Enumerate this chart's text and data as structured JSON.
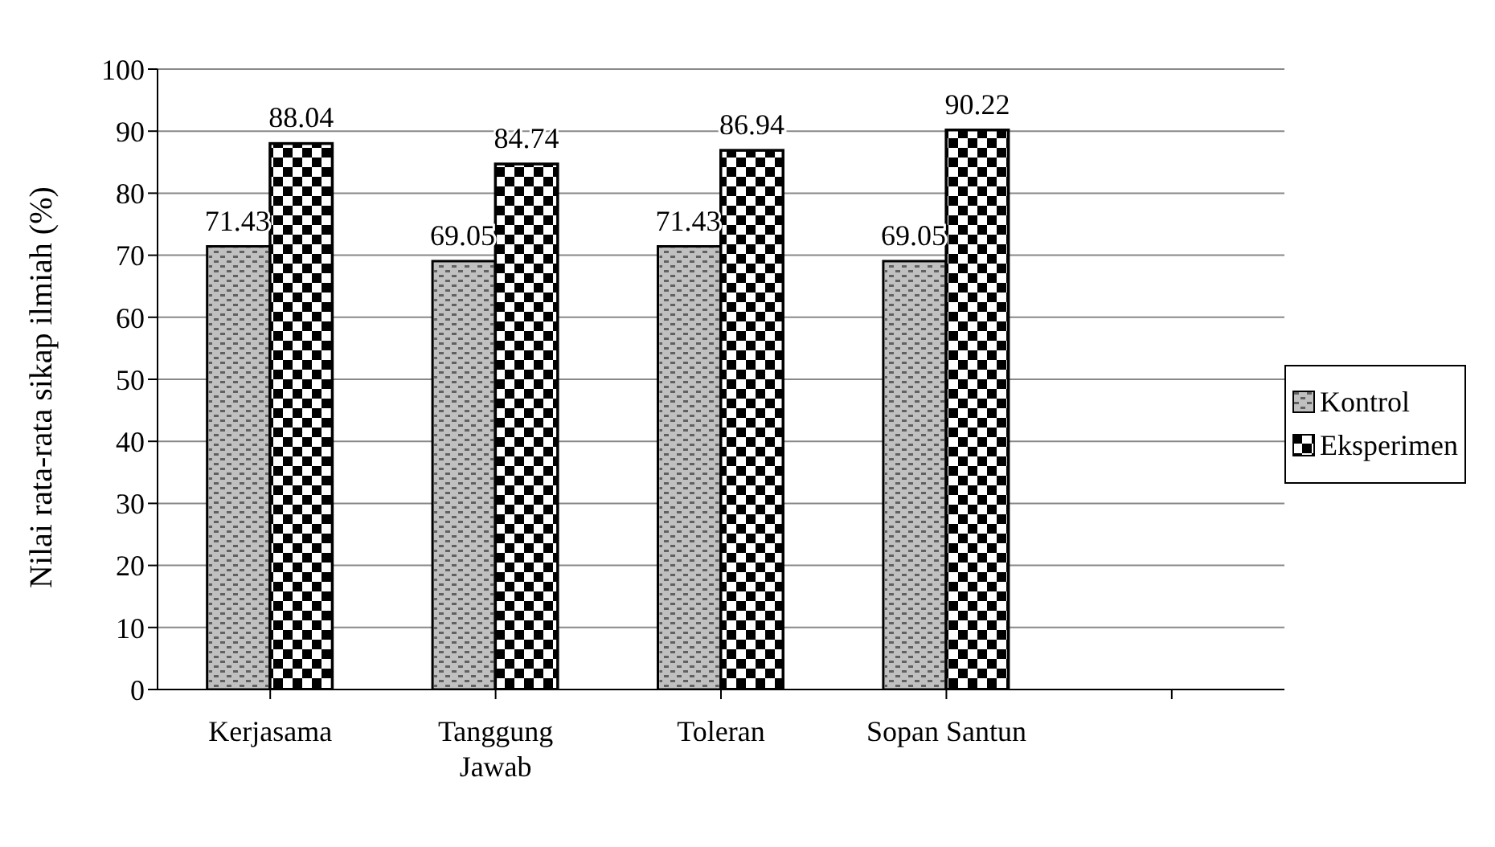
{
  "chart_data": {
    "type": "bar",
    "ylabel": "Nilai rata-rata sikap ilmiah (%)",
    "categories": [
      "Kerjasama",
      "Tanggung Jawab",
      "Toleran",
      "Sopan Santun",
      null
    ],
    "series": [
      {
        "name": "Kontrol",
        "color": "#c0c0c0",
        "values": [
          71.43,
          69.05,
          71.43,
          69.05,
          null
        ]
      },
      {
        "name": "Eksperimen",
        "color": "#000000",
        "values": [
          88.04,
          84.74,
          86.94,
          90.22,
          null
        ]
      }
    ],
    "ylim": [
      0,
      100
    ],
    "yticks": [
      0,
      10,
      20,
      30,
      40,
      50,
      60,
      70,
      80,
      90,
      100
    ],
    "grid": "y",
    "legend": "right",
    "data_labels": true
  }
}
